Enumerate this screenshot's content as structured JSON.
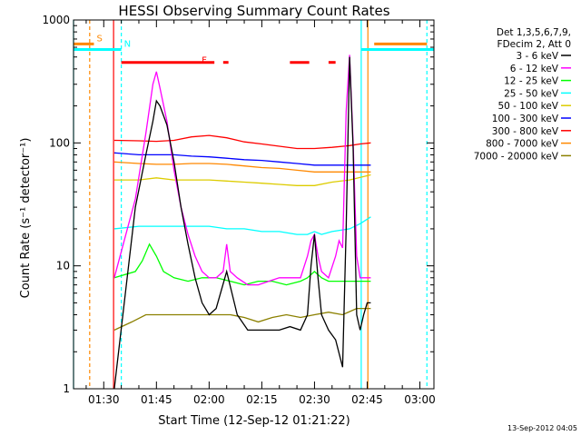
{
  "chart_data": {
    "type": "line",
    "title": "HESSI Observing Summary Count Rates",
    "xlabel": "Start Time (12-Sep-12 01:21:22)",
    "ylabel": "Count Rate (s⁻¹ detector⁻¹)",
    "y_scale": "log",
    "ylim": [
      1,
      1000
    ],
    "xlim_minutes": [
      81.4,
      184.0
    ],
    "x_ticks": [
      {
        "t": 90,
        "label": "01:30"
      },
      {
        "t": 105,
        "label": "01:45"
      },
      {
        "t": 120,
        "label": "02:00"
      },
      {
        "t": 135,
        "label": "02:15"
      },
      {
        "t": 150,
        "label": "02:30"
      },
      {
        "t": 165,
        "label": "02:45"
      },
      {
        "t": 180,
        "label": "03:00"
      }
    ],
    "y_ticks": [
      {
        "v": 1,
        "label": "1"
      },
      {
        "v": 10,
        "label": "10"
      },
      {
        "v": 100,
        "label": "100"
      },
      {
        "v": 1000,
        "label": "1000"
      }
    ],
    "legend_header": [
      "Det 1,3,5,6,7,9,",
      "FDecim 2, Att 0"
    ],
    "legend_position": "right",
    "series": [
      {
        "name": "3 - 6 keV",
        "color": "#000000",
        "x": [
          93,
          99,
          102,
          104,
          105,
          106,
          108,
          110,
          112,
          114,
          116,
          118,
          120,
          122,
          125,
          128,
          131,
          134,
          137,
          140,
          143,
          146,
          148,
          149,
          150,
          151,
          152,
          154,
          156,
          158,
          159,
          160,
          161,
          162,
          163,
          164,
          165,
          166
        ],
        "y": [
          1,
          30,
          80,
          150,
          220,
          200,
          140,
          70,
          30,
          15,
          8,
          5,
          4,
          4.5,
          9,
          4,
          3,
          3,
          3,
          3,
          3.2,
          3,
          4,
          10,
          18,
          8,
          4,
          3,
          2.5,
          1.5,
          20,
          500,
          90,
          4,
          3,
          4,
          5,
          5
        ]
      },
      {
        "name": "6 - 12 keV",
        "color": "#ff00ff",
        "x": [
          93,
          99,
          102,
          104,
          105,
          106,
          108,
          110,
          112,
          114,
          116,
          118,
          120,
          122,
          124,
          125,
          126,
          128,
          131,
          134,
          137,
          140,
          143,
          146,
          148,
          149,
          150,
          151,
          152,
          154,
          156,
          157,
          158,
          159,
          160,
          161,
          162,
          163,
          164,
          166
        ],
        "y": [
          8,
          35,
          120,
          300,
          380,
          280,
          150,
          60,
          30,
          18,
          12,
          9,
          8,
          8,
          9,
          15,
          9,
          8,
          7,
          7,
          7.5,
          8,
          8,
          8,
          12,
          16,
          18,
          12,
          9,
          8,
          12,
          16,
          14,
          180,
          520,
          100,
          12,
          8,
          8,
          8
        ]
      },
      {
        "name": "12 - 25 keV",
        "color": "#00ff00",
        "x": [
          93,
          99,
          101,
          103,
          105,
          107,
          110,
          114,
          118,
          122,
          126,
          130,
          134,
          138,
          142,
          146,
          148,
          150,
          152,
          154,
          156,
          158,
          160,
          162,
          164,
          166
        ],
        "y": [
          8,
          9,
          11,
          15,
          12,
          9,
          8,
          7.5,
          8,
          8,
          7.5,
          7,
          7.5,
          7.5,
          7,
          7.5,
          8,
          9,
          8,
          7.5,
          7.5,
          7.5,
          7.5,
          7.5,
          7.5,
          7.5
        ]
      },
      {
        "name": "25 - 50 keV",
        "color": "#00ffff",
        "x": [
          93,
          100,
          105,
          110,
          115,
          120,
          125,
          130,
          135,
          140,
          145,
          148,
          150,
          152,
          155,
          160,
          163,
          166
        ],
        "y": [
          20,
          21,
          21,
          21,
          21,
          21,
          20,
          20,
          19,
          19,
          18,
          18,
          19,
          18,
          19,
          20,
          22,
          25
        ]
      },
      {
        "name": "50 - 100 keV",
        "color": "#ddcc00",
        "x": [
          93,
          100,
          105,
          110,
          115,
          120,
          125,
          130,
          135,
          140,
          145,
          150,
          155,
          160,
          166
        ],
        "y": [
          50,
          50,
          52,
          50,
          50,
          50,
          49,
          48,
          47,
          46,
          45,
          45,
          48,
          50,
          55
        ]
      },
      {
        "name": "100 - 300 keV",
        "color": "#0000ff",
        "x": [
          93,
          100,
          105,
          110,
          115,
          120,
          125,
          130,
          135,
          140,
          145,
          150,
          155,
          160,
          166
        ],
        "y": [
          83,
          80,
          80,
          80,
          78,
          77,
          75,
          73,
          72,
          70,
          68,
          66,
          66,
          66,
          66
        ]
      },
      {
        "name": "300 - 800 keV",
        "color": "#ff0000",
        "x": [
          93,
          100,
          105,
          110,
          115,
          120,
          125,
          130,
          135,
          140,
          145,
          150,
          155,
          160,
          163,
          166
        ],
        "y": [
          105,
          104,
          103,
          105,
          112,
          115,
          110,
          102,
          98,
          94,
          90,
          90,
          92,
          95,
          98,
          100
        ]
      },
      {
        "name": "800 - 7000 keV",
        "color": "#ff8800",
        "x": [
          93,
          100,
          105,
          110,
          115,
          120,
          125,
          130,
          135,
          140,
          145,
          150,
          155,
          160,
          166
        ],
        "y": [
          70,
          68,
          67,
          67,
          68,
          68,
          67,
          65,
          63,
          62,
          60,
          58,
          58,
          58,
          58
        ]
      },
      {
        "name": "7000 - 20000 keV",
        "color": "#8b8000",
        "x": [
          93,
          98,
          102,
          106,
          110,
          114,
          118,
          122,
          126,
          130,
          134,
          138,
          142,
          146,
          150,
          154,
          158,
          162,
          166
        ],
        "y": [
          3,
          3.5,
          4,
          4,
          4,
          4,
          4,
          4,
          4,
          3.8,
          3.5,
          3.8,
          4,
          3.8,
          4,
          4.2,
          4,
          4.5,
          4.5
        ]
      }
    ],
    "flags": [
      {
        "label": "S",
        "color": "#ff8800",
        "level_fraction": 0.935,
        "segments": [
          [
            81.4,
            87.2
          ],
          [
            167.0,
            182.0
          ]
        ]
      },
      {
        "label": "N",
        "color": "#00ffff",
        "level_fraction": 0.92,
        "segments": [
          [
            81.4,
            95.0
          ],
          [
            163.3,
            184.0
          ]
        ]
      },
      {
        "label": "F",
        "color": "#ff0000",
        "level_fraction": 0.885,
        "segments": [
          [
            95.0,
            121.5
          ],
          [
            124.0,
            125.5
          ],
          [
            143.0,
            148.5
          ],
          [
            154.0,
            156.0
          ]
        ]
      }
    ],
    "vertical_lines": [
      {
        "t": 81.4,
        "color": "#00ffff",
        "dash": false
      },
      {
        "t": 86.0,
        "color": "#ff8800",
        "dash": true
      },
      {
        "t": 92.8,
        "color": "#ff0000",
        "dash": false
      },
      {
        "t": 95.0,
        "color": "#00ffff",
        "dash": true
      },
      {
        "t": 163.3,
        "color": "#00ffff",
        "dash": false
      },
      {
        "t": 165.2,
        "color": "#ff8800",
        "dash": false
      },
      {
        "t": 182.0,
        "color": "#00ffff",
        "dash": true
      }
    ]
  },
  "footer": {
    "timestamp": "13-Sep-2012 04:05"
  }
}
